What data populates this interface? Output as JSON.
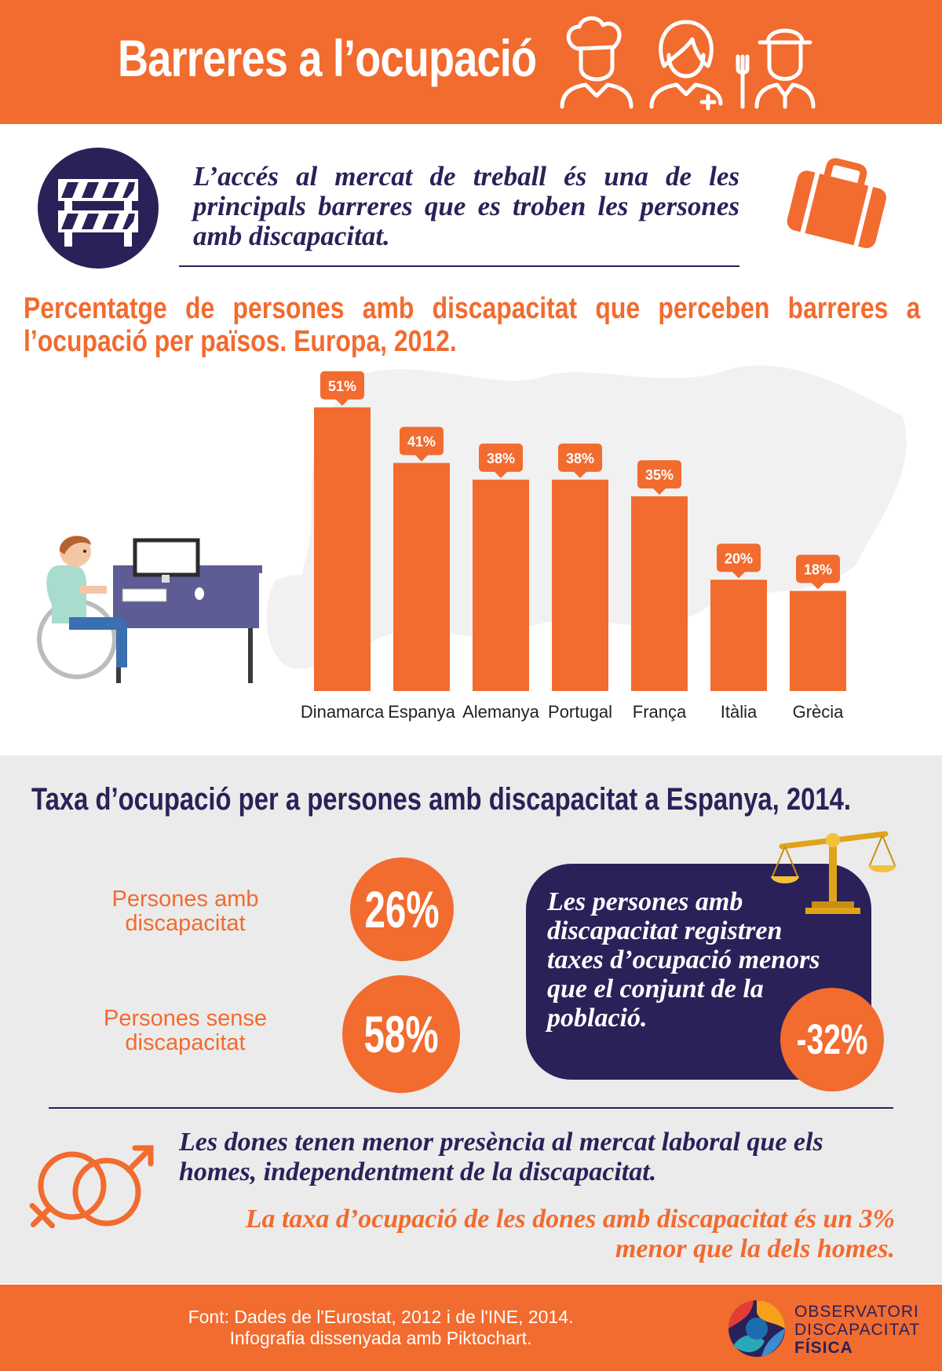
{
  "header": {
    "title": "Barreres a l’ocupació"
  },
  "intro": {
    "text": "L’accés al mercat de treball és una de les principals barreres que es troben les persones amb discapacitat."
  },
  "chart_data": {
    "type": "bar",
    "title": "Percentatge de persones amb discapacitat que perceben barreres a l’ocupació per països. Europa, 2012.",
    "categories": [
      "Dinamarca",
      "Espanya",
      "Alemanya",
      "Portugal",
      "França",
      "Itàlia",
      "Grècia"
    ],
    "values": [
      51,
      41,
      38,
      38,
      35,
      20,
      18
    ],
    "value_labels": [
      "51%",
      "41%",
      "38%",
      "38%",
      "35%",
      "20%",
      "18%"
    ],
    "ylim": [
      0,
      60
    ],
    "xlabel": "",
    "ylabel": "",
    "grid": false,
    "colors": {
      "bar": "#f26b2f"
    }
  },
  "employment": {
    "title": "Taxa d’ocupació per a persones amb discapacitat a Espanya, 2014.",
    "with_label": "Persones amb discapacitat",
    "with_value": "26%",
    "without_label": "Persones sense discapacitat",
    "without_value": "58%",
    "callout_text": "Les persones amb discapacitat registren taxes d’ocupació menors que el conjunt de la població.",
    "gap_value": "-32%"
  },
  "women": {
    "line1": "Les dones tenen menor presència al mercat laboral que els homes, independentment de la discapacitat.",
    "line2": "La taxa d’ocupació de les dones amb discapacitat és un 3% menor que la dels homes."
  },
  "footer": {
    "source_line1": "Font: Dades de l'Eurostat, 2012 i de l'INE, 2014.",
    "source_line2": "Infografia dissenyada amb Piktochart.",
    "logo_line1": "OBSERVATORI",
    "logo_line2": "DISCAPACITAT",
    "logo_line3": "FÍSICA"
  },
  "colors": {
    "orange": "#f26b2f",
    "navy": "#2b2159",
    "band": "#ebebeb"
  },
  "icons": [
    "chef-icon",
    "nurse-icon",
    "waiter-icon",
    "barrier-icon",
    "briefcase-icon",
    "wheelchair-worker-icon",
    "scales-icon",
    "gender-symbols-icon",
    "observatori-logo-icon"
  ]
}
